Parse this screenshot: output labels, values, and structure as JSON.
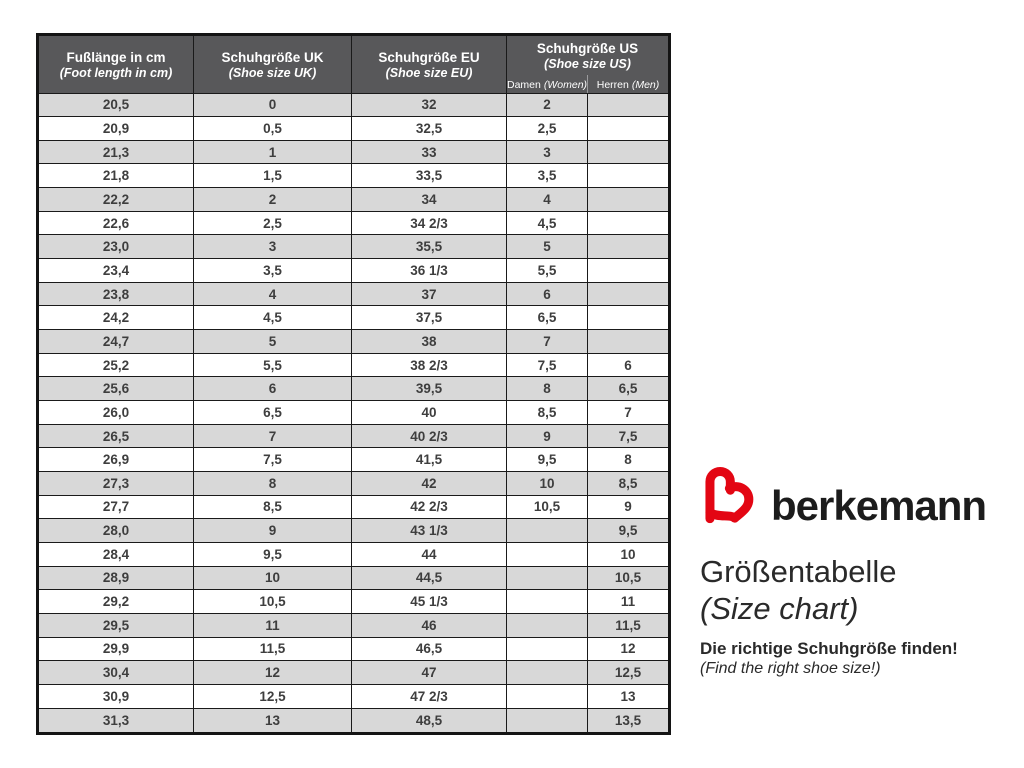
{
  "chart_data": {
    "type": "table",
    "title": "Größentabelle (Size chart)",
    "columns": [
      {
        "label_de": "Fußlänge in cm",
        "label_en": "(Foot length in cm)"
      },
      {
        "label_de": "Schuhgröße UK",
        "label_en": "(Shoe size UK)"
      },
      {
        "label_de": "Schuhgröße EU",
        "label_en": "(Shoe size EU)"
      },
      {
        "label_de": "Schuhgröße US",
        "label_en": "(Shoe size US)",
        "subcolumns": [
          {
            "label_de": "Damen",
            "label_en": "(Women)"
          },
          {
            "label_de": "Herren",
            "label_en": "(Men)"
          }
        ]
      }
    ],
    "rows": [
      [
        "20,5",
        "0",
        "32",
        "2",
        ""
      ],
      [
        "20,9",
        "0,5",
        "32,5",
        "2,5",
        ""
      ],
      [
        "21,3",
        "1",
        "33",
        "3",
        ""
      ],
      [
        "21,8",
        "1,5",
        "33,5",
        "3,5",
        ""
      ],
      [
        "22,2",
        "2",
        "34",
        "4",
        ""
      ],
      [
        "22,6",
        "2,5",
        "34 2/3",
        "4,5",
        ""
      ],
      [
        "23,0",
        "3",
        "35,5",
        "5",
        ""
      ],
      [
        "23,4",
        "3,5",
        "36 1/3",
        "5,5",
        ""
      ],
      [
        "23,8",
        "4",
        "37",
        "6",
        ""
      ],
      [
        "24,2",
        "4,5",
        "37,5",
        "6,5",
        ""
      ],
      [
        "24,7",
        "5",
        "38",
        "7",
        ""
      ],
      [
        "25,2",
        "5,5",
        "38 2/3",
        "7,5",
        "6"
      ],
      [
        "25,6",
        "6",
        "39,5",
        "8",
        "6,5"
      ],
      [
        "26,0",
        "6,5",
        "40",
        "8,5",
        "7"
      ],
      [
        "26,5",
        "7",
        "40 2/3",
        "9",
        "7,5"
      ],
      [
        "26,9",
        "7,5",
        "41,5",
        "9,5",
        "8"
      ],
      [
        "27,3",
        "8",
        "42",
        "10",
        "8,5"
      ],
      [
        "27,7",
        "8,5",
        "42 2/3",
        "10,5",
        "9"
      ],
      [
        "28,0",
        "9",
        "43 1/3",
        "",
        "9,5"
      ],
      [
        "28,4",
        "9,5",
        "44",
        "",
        "10"
      ],
      [
        "28,9",
        "10",
        "44,5",
        "",
        "10,5"
      ],
      [
        "29,2",
        "10,5",
        "45 1/3",
        "",
        "11"
      ],
      [
        "29,5",
        "11",
        "46",
        "",
        "11,5"
      ],
      [
        "29,9",
        "11,5",
        "46,5",
        "",
        "12"
      ],
      [
        "30,4",
        "12",
        "47",
        "",
        "12,5"
      ],
      [
        "30,9",
        "12,5",
        "47 2/3",
        "",
        "13"
      ],
      [
        "31,3",
        "13",
        "48,5",
        "",
        "13,5"
      ]
    ]
  },
  "branding": {
    "brand_name": "berkemann",
    "title_de": "Größentabelle",
    "title_en": "(Size chart)",
    "subtitle_de": "Die richtige Schuhgröße finden!",
    "subtitle_en": "(Find the right shoe size!)"
  },
  "colors": {
    "brand_red": "#e30613",
    "header_bg": "#58585a",
    "row_alt_bg": "#d8d8d8",
    "border": "#1a1a1a",
    "cell_text": "#3e3e3e"
  }
}
